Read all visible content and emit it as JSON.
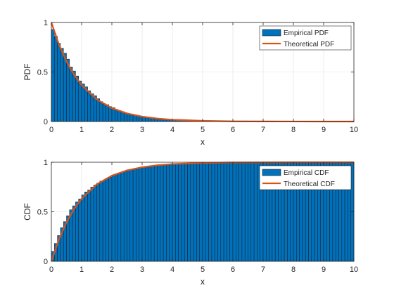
{
  "chart_data": [
    {
      "type": "bar",
      "xlabel": "x",
      "ylabel": "PDF",
      "xlim": [
        0,
        10
      ],
      "ylim": [
        0,
        1
      ],
      "xticks": [
        "0",
        "1",
        "2",
        "3",
        "4",
        "5",
        "6",
        "7",
        "8",
        "9",
        "10"
      ],
      "yticks": [
        "0",
        "0.5",
        "1"
      ],
      "grid": true,
      "legend_position": "top-right",
      "histogram": {
        "name": "Empirical PDF",
        "color": "#0072BD",
        "bin_width": 0.1,
        "values": [
          0.93,
          0.86,
          0.79,
          0.74,
          0.69,
          0.63,
          0.55,
          0.51,
          0.46,
          0.41,
          0.38,
          0.35,
          0.31,
          0.28,
          0.26,
          0.23,
          0.2,
          0.18,
          0.17,
          0.15,
          0.14,
          0.12,
          0.11,
          0.1,
          0.09,
          0.08,
          0.075,
          0.065,
          0.06,
          0.055,
          0.05,
          0.045,
          0.04,
          0.036,
          0.033,
          0.03,
          0.027,
          0.024,
          0.022,
          0.02,
          0.018,
          0.016,
          0.015,
          0.013,
          0.012,
          0.011,
          0.01,
          0.009,
          0.008,
          0.007,
          0.0065,
          0.006,
          0.0055,
          0.005,
          0.0045,
          0.004,
          0.0035,
          0.003,
          0.003,
          0.0025,
          0.0025,
          0.002,
          0.002,
          0.0018,
          0.0015,
          0.0015,
          0.0012,
          0.0012,
          0.001,
          0.001,
          0.001,
          0.0008,
          0.0008,
          0.0007,
          0.0006,
          0.0006,
          0.0005,
          0.0005,
          0.0004,
          0.0004,
          0.0004,
          0.0003,
          0.0003,
          0.0003,
          0.0002,
          0.0002,
          0.0002,
          0.0002,
          0.0002,
          0.0001,
          0.0001,
          0.0001,
          0.0001,
          0.0001,
          0.0001,
          0.0001,
          0.0001,
          0.0001,
          0.0001,
          0.0001
        ]
      },
      "curve": {
        "name": "Theoretical PDF",
        "color": "#D95319",
        "x": [
          0,
          0.25,
          0.5,
          0.75,
          1,
          1.5,
          2,
          2.5,
          3,
          3.5,
          4,
          5,
          6,
          7,
          8,
          9,
          10
        ],
        "y": [
          1,
          0.779,
          0.607,
          0.472,
          0.368,
          0.223,
          0.135,
          0.082,
          0.05,
          0.03,
          0.018,
          0.007,
          0.002,
          0.001,
          0.0003,
          0.0001,
          0
        ]
      }
    },
    {
      "type": "bar",
      "xlabel": "x",
      "ylabel": "CDF",
      "xlim": [
        0,
        10
      ],
      "ylim": [
        0,
        1
      ],
      "xticks": [
        "0",
        "1",
        "2",
        "3",
        "4",
        "5",
        "6",
        "7",
        "8",
        "9",
        "10"
      ],
      "yticks": [
        "0",
        "0.5",
        "1"
      ],
      "grid": true,
      "legend_position": "top-right",
      "histogram": {
        "name": "Empirical CDF",
        "color": "#0072BD",
        "bin_width": 0.1,
        "values": [
          0.1,
          0.18,
          0.26,
          0.34,
          0.4,
          0.46,
          0.52,
          0.56,
          0.6,
          0.63,
          0.67,
          0.7,
          0.72,
          0.75,
          0.77,
          0.79,
          0.81,
          0.82,
          0.84,
          0.85,
          0.87,
          0.88,
          0.89,
          0.9,
          0.91,
          0.92,
          0.925,
          0.93,
          0.94,
          0.945,
          0.95,
          0.955,
          0.96,
          0.965,
          0.967,
          0.97,
          0.973,
          0.976,
          0.978,
          0.98,
          0.982,
          0.984,
          0.985,
          0.987,
          0.988,
          0.989,
          0.99,
          0.991,
          0.992,
          0.993,
          0.994,
          0.994,
          0.995,
          0.995,
          0.996,
          0.996,
          0.997,
          0.997,
          0.997,
          0.998,
          0.998,
          0.998,
          0.998,
          0.998,
          0.999,
          0.999,
          0.999,
          0.999,
          0.999,
          0.999,
          0.999,
          0.999,
          0.999,
          0.999,
          0.999,
          1,
          1,
          1,
          1,
          1,
          1,
          1,
          1,
          1,
          1,
          1,
          1,
          1,
          1,
          1,
          1,
          1,
          1,
          1,
          1,
          1,
          1,
          1,
          1,
          1
        ]
      },
      "curve": {
        "name": "Theoretical CDF",
        "color": "#D95319",
        "x": [
          0,
          0.25,
          0.5,
          0.75,
          1,
          1.5,
          2,
          2.5,
          3,
          3.5,
          4,
          5,
          6,
          7,
          8,
          9,
          10
        ],
        "y": [
          0,
          0.221,
          0.393,
          0.528,
          0.632,
          0.777,
          0.865,
          0.918,
          0.95,
          0.97,
          0.982,
          0.993,
          0.998,
          0.999,
          1,
          1,
          1
        ]
      }
    }
  ]
}
